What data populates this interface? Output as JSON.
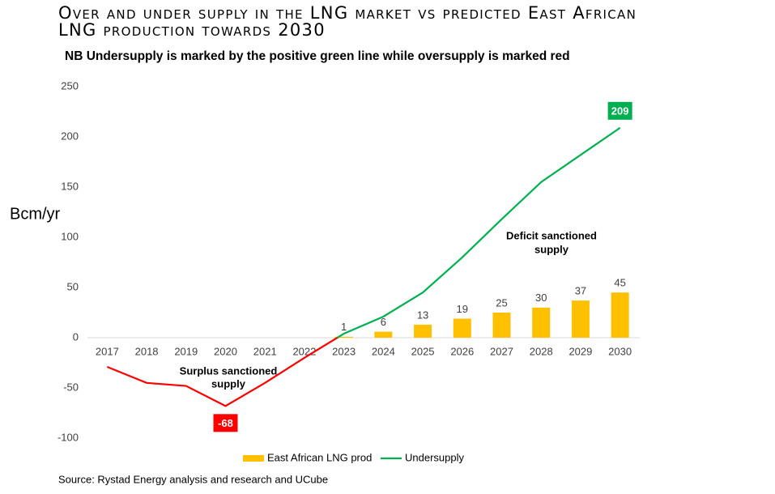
{
  "chart_data": {
    "type": "bar_line",
    "title": "Over and under supply in the LNG market vs predicted East African LNG production towards 2030",
    "subtitle": "NB Undersupply is marked by the positive green line while oversupply is marked red",
    "y_label": "Bcm/yr",
    "source": "Source: Rystad Energy analysis and research and UCube",
    "annotations": [
      [
        "Surplus sanctioned",
        "supply"
      ],
      [
        "Deficit sanctioned",
        "supply"
      ]
    ],
    "categories": [
      "2017",
      "2018",
      "2019",
      "2020",
      "2021",
      "2022",
      "2023",
      "2024",
      "2025",
      "2026",
      "2027",
      "2028",
      "2029",
      "2030"
    ],
    "series": [
      {
        "name": "East African LNG prod",
        "type": "bar",
        "color": "#ffc000",
        "values": [
          null,
          null,
          null,
          null,
          null,
          null,
          1,
          6,
          13,
          19,
          25,
          30,
          37,
          45
        ]
      },
      {
        "name": "Undersupply",
        "type": "line",
        "color": "#00b050",
        "negative_color": "#ff0000",
        "values": [
          -29,
          -45,
          -48,
          -68,
          -45,
          -20,
          4,
          21,
          45,
          80,
          118,
          155,
          182,
          209
        ]
      }
    ],
    "ylim": [
      -100,
      250
    ],
    "yticks": [
      -100,
      -50,
      0,
      50,
      100,
      150,
      200,
      250
    ],
    "grid": false
  }
}
